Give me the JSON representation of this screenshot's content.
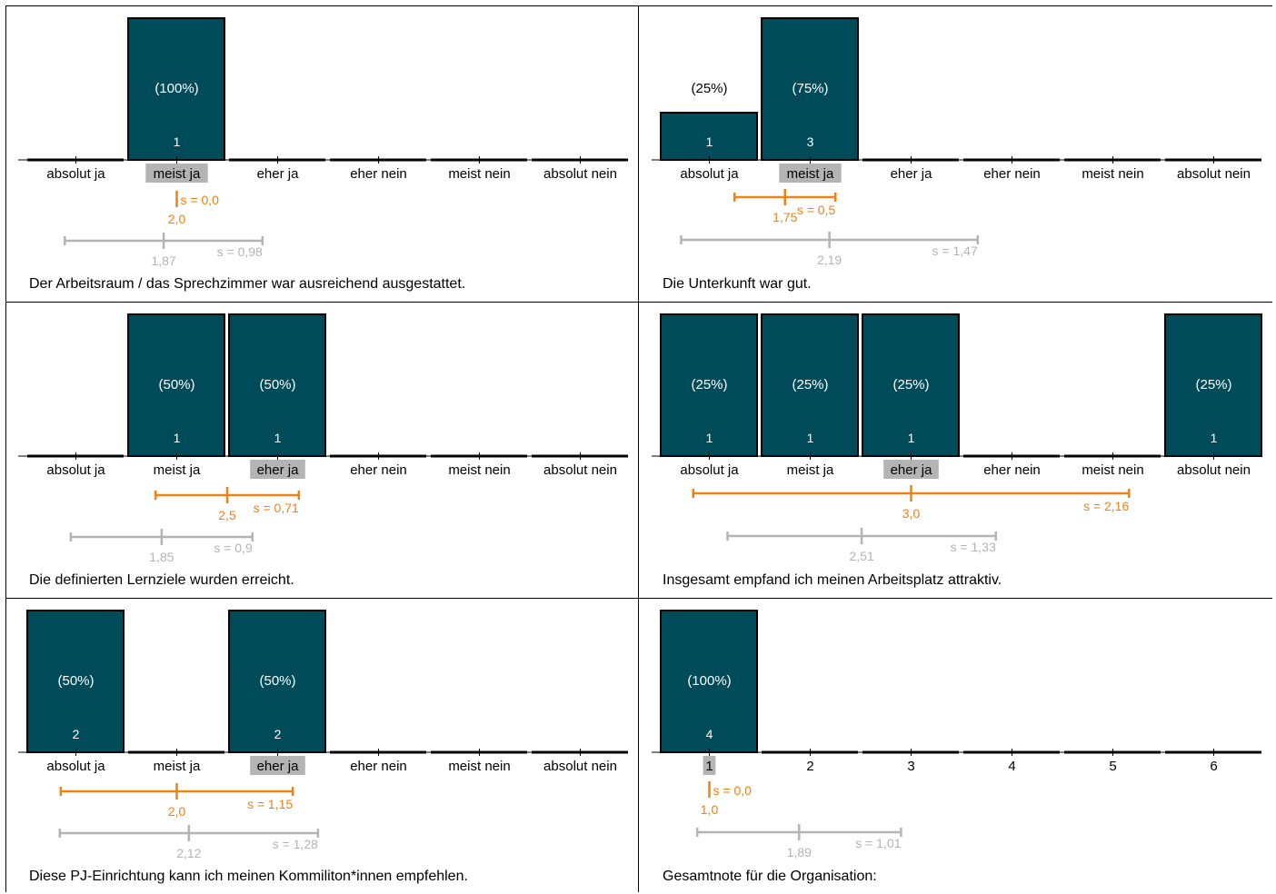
{
  "colors": {
    "bar": "#004b5a",
    "bar_stroke": "#000000",
    "bar_text": "#ffffff",
    "own_stats": "#f08113",
    "reference_stats": "#b4b4b4",
    "highlight": "#b4b4b4"
  },
  "chart_data": [
    {
      "type": "bar",
      "title": "Der Arbeitsraum / das Sprechzimmer war ausreichend ausgestattet.",
      "categories": [
        "absolut ja",
        "meist ja",
        "eher ja",
        "eher nein",
        "meist nein",
        "absolut nein"
      ],
      "counts": [
        0,
        1,
        0,
        0,
        0,
        0
      ],
      "percent_labels": [
        "",
        "(100%)",
        "",
        "",
        "",
        ""
      ],
      "count_labels": [
        "",
        "1",
        "",
        "",
        "",
        ""
      ],
      "highlighted_category": "meist ja",
      "own_mean": 2.0,
      "own_sd": 0.0,
      "own_mean_label": "2,0",
      "own_sd_label": "s = 0,0",
      "ref_mean": 1.87,
      "ref_sd": 0.98,
      "ref_mean_label": "1,87",
      "ref_sd_label": "s = 0,98"
    },
    {
      "type": "bar",
      "title": "Die Unterkunft war gut.",
      "categories": [
        "absolut ja",
        "meist ja",
        "eher ja",
        "eher nein",
        "meist nein",
        "absolut nein"
      ],
      "counts": [
        1,
        3,
        0,
        0,
        0,
        0
      ],
      "percent_labels": [
        "(25%)",
        "(75%)",
        "",
        "",
        "",
        ""
      ],
      "count_labels": [
        "1",
        "3",
        "",
        "",
        "",
        ""
      ],
      "highlighted_category": "meist ja",
      "own_mean": 1.75,
      "own_sd": 0.5,
      "own_mean_label": "1,75",
      "own_sd_label": "s = 0,5",
      "ref_mean": 2.19,
      "ref_sd": 1.47,
      "ref_mean_label": "2,19",
      "ref_sd_label": "s = 1,47"
    },
    {
      "type": "bar",
      "title": "Die definierten Lernziele wurden erreicht.",
      "categories": [
        "absolut ja",
        "meist ja",
        "eher ja",
        "eher nein",
        "meist nein",
        "absolut nein"
      ],
      "counts": [
        0,
        1,
        1,
        0,
        0,
        0
      ],
      "percent_labels": [
        "",
        "(50%)",
        "(50%)",
        "",
        "",
        ""
      ],
      "count_labels": [
        "",
        "1",
        "1",
        "",
        "",
        ""
      ],
      "highlighted_category": "eher ja",
      "own_mean": 2.5,
      "own_sd": 0.71,
      "own_mean_label": "2,5",
      "own_sd_label": "s = 0,71",
      "ref_mean": 1.85,
      "ref_sd": 0.9,
      "ref_mean_label": "1,85",
      "ref_sd_label": "s = 0,9"
    },
    {
      "type": "bar",
      "title": "Insgesamt empfand ich meinen Arbeitsplatz attraktiv.",
      "categories": [
        "absolut ja",
        "meist ja",
        "eher ja",
        "eher nein",
        "meist nein",
        "absolut nein"
      ],
      "counts": [
        1,
        1,
        1,
        0,
        0,
        1
      ],
      "percent_labels": [
        "(25%)",
        "(25%)",
        "(25%)",
        "",
        "",
        "(25%)"
      ],
      "count_labels": [
        "1",
        "1",
        "1",
        "",
        "",
        "1"
      ],
      "highlighted_category": "eher ja",
      "own_mean": 3.0,
      "own_sd": 2.16,
      "own_mean_label": "3,0",
      "own_sd_label": "s = 2,16",
      "ref_mean": 2.51,
      "ref_sd": 1.33,
      "ref_mean_label": "2,51",
      "ref_sd_label": "s = 1,33"
    },
    {
      "type": "bar",
      "title": "Diese PJ-Einrichtung kann ich meinen Kommiliton*innen empfehlen.",
      "categories": [
        "absolut ja",
        "meist ja",
        "eher ja",
        "eher nein",
        "meist nein",
        "absolut nein"
      ],
      "counts": [
        2,
        0,
        2,
        0,
        0,
        0
      ],
      "percent_labels": [
        "(50%)",
        "",
        "(50%)",
        "",
        "",
        ""
      ],
      "count_labels": [
        "2",
        "",
        "2",
        "",
        "",
        ""
      ],
      "highlighted_category": "eher ja",
      "own_mean": 2.0,
      "own_sd": 1.15,
      "own_mean_label": "2,0",
      "own_sd_label": "s = 1,15",
      "ref_mean": 2.12,
      "ref_sd": 1.28,
      "ref_mean_label": "2,12",
      "ref_sd_label": "s = 1,28"
    },
    {
      "type": "bar",
      "title": "Gesamtnote für die Organisation:",
      "categories": [
        "1",
        "2",
        "3",
        "4",
        "5",
        "6"
      ],
      "counts": [
        4,
        0,
        0,
        0,
        0,
        0
      ],
      "percent_labels": [
        "(100%)",
        "",
        "",
        "",
        "",
        ""
      ],
      "count_labels": [
        "4",
        "",
        "",
        "",
        "",
        ""
      ],
      "highlighted_category": "1",
      "own_mean": 1.0,
      "own_sd": 0.0,
      "own_mean_label": "1,0",
      "own_sd_label": "s = 0,0",
      "ref_mean": 1.89,
      "ref_sd": 1.01,
      "ref_mean_label": "1,89",
      "ref_sd_label": "s = 1,01"
    }
  ]
}
